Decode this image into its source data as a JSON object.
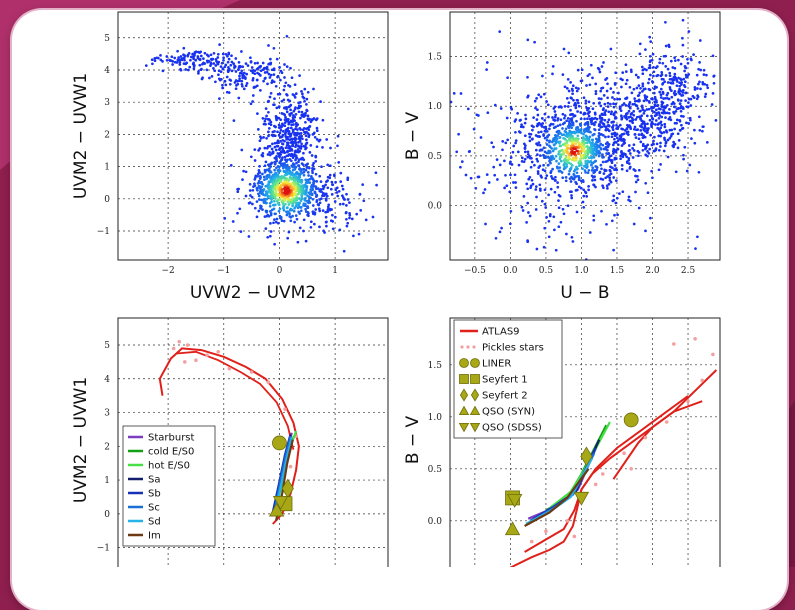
{
  "colors": {
    "frame_background": "#8f1f4e",
    "point_blue": "#1d33f0",
    "density_center": "#e01e10",
    "model_track_red": "#e0201a",
    "agn_marker_olive": "#a8a816"
  },
  "chart_data": [
    {
      "type": "scatter",
      "id": "top-left",
      "xlabel": "UVW2 − UVM2",
      "ylabel": "UVM2 − UVW1",
      "xlim": [
        -2.9,
        1.95
      ],
      "ylim": [
        -1.9,
        5.8
      ],
      "xticks": [
        -2,
        -1,
        0,
        1
      ],
      "xticklabels": [
        "−2",
        "−1",
        "0",
        "1"
      ],
      "yticks": [
        -1,
        0,
        1,
        2,
        3,
        4,
        5
      ],
      "yticklabels": [
        "−1",
        "0",
        "1",
        "2",
        "3",
        "4",
        "5"
      ],
      "grid": true,
      "density": {
        "points": 1600,
        "core": [
          0.12,
          0.25
        ],
        "components": [
          {
            "center": [
              0.08,
              0.3
            ],
            "sigma": [
              0.28,
              0.35
            ],
            "weight": 0.3
          },
          {
            "center": [
              0.18,
              2.0
            ],
            "sigma": [
              0.22,
              0.8
            ],
            "weight": 0.22
          },
          {
            "center": [
              0.25,
              1.3
            ],
            "sigma": [
              0.32,
              0.9
            ],
            "weight": 0.15
          },
          {
            "center": [
              -0.6,
              3.9
            ],
            "sigma": [
              0.35,
              0.28
            ],
            "weight": 0.1
          },
          {
            "center": [
              -1.5,
              4.3
            ],
            "sigma": [
              0.35,
              0.15
            ],
            "weight": 0.08
          },
          {
            "center": [
              0.4,
              0.0
            ],
            "sigma": [
              0.55,
              0.55
            ],
            "weight": 0.15
          }
        ]
      }
    },
    {
      "type": "scatter",
      "id": "top-right",
      "xlabel": "U − B",
      "ylabel": "B − V",
      "xlim": [
        -0.85,
        2.95
      ],
      "ylim": [
        -0.55,
        1.95
      ],
      "xticks": [
        -0.5,
        0.0,
        0.5,
        1.0,
        1.5,
        2.0,
        2.5
      ],
      "xticklabels": [
        "−0.5",
        "0.0",
        "0.5",
        "1.0",
        "1.5",
        "2.0",
        "2.5"
      ],
      "yticks": [
        0.0,
        0.5,
        1.0,
        1.5
      ],
      "yticklabels": [
        "0.0",
        "0.5",
        "1.0",
        "1.5"
      ],
      "grid": true,
      "density": {
        "points": 1700,
        "core": [
          0.9,
          0.55
        ],
        "components": [
          {
            "center": [
              0.95,
              0.58
            ],
            "sigma": [
              0.35,
              0.18
            ],
            "weight": 0.35
          },
          {
            "center": [
              1.6,
              0.85
            ],
            "sigma": [
              0.45,
              0.22
            ],
            "weight": 0.25
          },
          {
            "center": [
              2.3,
              1.2
            ],
            "sigma": [
              0.3,
              0.25
            ],
            "weight": 0.15
          },
          {
            "center": [
              0.7,
              0.5
            ],
            "sigma": [
              0.7,
              0.45
            ],
            "weight": 0.25
          }
        ]
      }
    },
    {
      "type": "line",
      "id": "bottom-left",
      "ylabel": "UVM2 − UVW1",
      "xlim": [
        -2.9,
        1.95
      ],
      "ylim": [
        -1.9,
        5.8
      ],
      "yticks": [
        -1,
        0,
        1,
        2,
        3,
        4,
        5
      ],
      "yticklabels": [
        "−1",
        "0",
        "1",
        "2",
        "3",
        "4",
        "5"
      ],
      "xticks": [
        -2,
        -1,
        0,
        1
      ],
      "grid": true,
      "stellar_track": [
        [
          -2.1,
          3.5
        ],
        [
          -2.15,
          4.0
        ],
        [
          -1.95,
          4.6
        ],
        [
          -1.75,
          4.9
        ],
        [
          -1.4,
          4.85
        ],
        [
          -1.0,
          4.65
        ],
        [
          -0.6,
          4.35
        ],
        [
          -0.25,
          4.0
        ],
        [
          0.05,
          3.4
        ],
        [
          0.25,
          2.7
        ],
        [
          0.35,
          2.0
        ],
        [
          0.3,
          1.3
        ],
        [
          0.2,
          0.6
        ],
        [
          0.05,
          0.0
        ],
        [
          -0.12,
          -0.3
        ]
      ],
      "stellar_track_2": [
        [
          -1.85,
          4.75
        ],
        [
          -1.5,
          4.8
        ],
        [
          -1.1,
          4.55
        ],
        [
          -0.7,
          4.2
        ],
        [
          -0.35,
          3.85
        ],
        [
          -0.05,
          3.3
        ],
        [
          0.15,
          2.6
        ],
        [
          0.25,
          1.9
        ]
      ],
      "pickles_stars": [
        [
          -1.8,
          5.1
        ],
        [
          -1.65,
          5.0
        ],
        [
          -1.9,
          4.9
        ],
        [
          -1.7,
          4.5
        ],
        [
          -1.3,
          4.7
        ],
        [
          -0.9,
          4.3
        ],
        [
          -0.5,
          4.2
        ],
        [
          -0.2,
          3.9
        ],
        [
          0.1,
          3.1
        ],
        [
          0.3,
          2.3
        ],
        [
          0.2,
          1.4
        ],
        [
          0.1,
          0.7
        ],
        [
          -0.05,
          0.1
        ],
        [
          -1.5,
          4.55
        ],
        [
          -1.1,
          4.8
        ]
      ],
      "series": [
        {
          "name": "Starburst",
          "color": "#7d3cc0",
          "points": [
            [
              -0.08,
              0.2
            ],
            [
              0.05,
              1.1
            ],
            [
              0.15,
              1.9
            ],
            [
              0.22,
              2.4
            ]
          ]
        },
        {
          "name": "cold E/S0",
          "color": "#14a014",
          "points": [
            [
              -0.04,
              0.3
            ],
            [
              0.08,
              1.2
            ],
            [
              0.18,
              1.95
            ],
            [
              0.26,
              2.3
            ]
          ]
        },
        {
          "name": "hot E/S0",
          "color": "#46e046",
          "points": [
            [
              -0.02,
              0.4
            ],
            [
              0.1,
              1.3
            ],
            [
              0.2,
              2.0
            ],
            [
              0.3,
              2.45
            ]
          ]
        },
        {
          "name": "Sa",
          "color": "#141c6c",
          "points": [
            [
              -0.1,
              0.1
            ],
            [
              0.02,
              1.0
            ],
            [
              0.12,
              1.8
            ],
            [
              0.2,
              2.35
            ]
          ]
        },
        {
          "name": "Sb",
          "color": "#1830b8",
          "points": [
            [
              -0.12,
              0.05
            ],
            [
              0.0,
              0.95
            ],
            [
              0.1,
              1.75
            ],
            [
              0.19,
              2.3
            ]
          ]
        },
        {
          "name": "Sc",
          "color": "#1a6fd6",
          "points": [
            [
              -0.1,
              0.0
            ],
            [
              0.01,
              0.9
            ],
            [
              0.11,
              1.7
            ],
            [
              0.2,
              2.3
            ]
          ]
        },
        {
          "name": "Sd",
          "color": "#27b3e8",
          "points": [
            [
              -0.08,
              0.05
            ],
            [
              0.03,
              0.85
            ],
            [
              0.13,
              1.65
            ],
            [
              0.22,
              2.25
            ]
          ]
        },
        {
          "name": "Im",
          "color": "#6b3a14",
          "points": [
            [
              -0.06,
              -0.2
            ],
            [
              0.05,
              0.6
            ],
            [
              0.14,
              1.5
            ],
            [
              0.24,
              2.2
            ]
          ]
        }
      ],
      "markers": [
        {
          "shape": "circle",
          "x": 0.0,
          "y": 2.1
        },
        {
          "shape": "diamond",
          "x": 0.15,
          "y": 0.75
        },
        {
          "shape": "square",
          "x": 0.1,
          "y": 0.3
        },
        {
          "shape": "triangle-up",
          "x": -0.05,
          "y": 0.1
        },
        {
          "shape": "triangle-down",
          "x": 0.02,
          "y": 0.35
        }
      ]
    },
    {
      "type": "line",
      "id": "bottom-right",
      "ylabel": "B − V",
      "xlim": [
        -0.85,
        2.95
      ],
      "ylim": [
        -0.55,
        1.95
      ],
      "yticks": [
        0.0,
        0.5,
        1.0,
        1.5
      ],
      "yticklabels": [
        "0.0",
        "0.5",
        "1.0",
        "1.5"
      ],
      "xticks": [
        -0.5,
        0.0,
        0.5,
        1.0,
        1.5,
        2.0,
        2.5
      ],
      "grid": true,
      "atlas9_tracks": [
        [
          [
            0.0,
            -0.45
          ],
          [
            0.3,
            -0.35
          ],
          [
            0.55,
            -0.28
          ],
          [
            0.75,
            -0.2
          ],
          [
            0.88,
            -0.05
          ],
          [
            0.95,
            0.15
          ],
          [
            1.0,
            0.3
          ],
          [
            1.15,
            0.45
          ],
          [
            1.4,
            0.6
          ],
          [
            1.7,
            0.75
          ],
          [
            2.0,
            0.9
          ],
          [
            2.3,
            1.05
          ],
          [
            2.6,
            1.25
          ],
          [
            2.9,
            1.45
          ]
        ],
        [
          [
            0.2,
            -0.3
          ],
          [
            0.5,
            -0.18
          ],
          [
            0.75,
            -0.08
          ],
          [
            0.9,
            0.1
          ],
          [
            1.0,
            0.3
          ],
          [
            1.2,
            0.5
          ],
          [
            1.5,
            0.7
          ],
          [
            1.8,
            0.85
          ],
          [
            2.1,
            1.0
          ],
          [
            2.5,
            1.2
          ]
        ],
        [
          [
            1.45,
            0.4
          ],
          [
            1.6,
            0.55
          ],
          [
            1.8,
            0.75
          ],
          [
            2.0,
            0.9
          ],
          [
            2.3,
            1.05
          ],
          [
            2.7,
            1.15
          ]
        ]
      ],
      "pickles_stars": [
        [
          0.3,
          -0.2
        ],
        [
          0.5,
          -0.1
        ],
        [
          0.8,
          0.0
        ],
        [
          1.0,
          0.2
        ],
        [
          1.3,
          0.45
        ],
        [
          1.6,
          0.65
        ],
        [
          1.9,
          0.8
        ],
        [
          2.2,
          0.95
        ],
        [
          2.5,
          1.15
        ],
        [
          2.7,
          1.35
        ],
        [
          2.85,
          1.6
        ],
        [
          2.6,
          1.75
        ],
        [
          2.3,
          1.7
        ],
        [
          0.9,
          -0.15
        ],
        [
          1.2,
          0.35
        ],
        [
          1.7,
          0.5
        ]
      ],
      "series": [
        {
          "name": "Starburst",
          "color": "#7d3cc0",
          "points": [
            [
              0.25,
              0.02
            ],
            [
              0.6,
              0.12
            ],
            [
              0.95,
              0.3
            ],
            [
              1.3,
              0.85
            ]
          ]
        },
        {
          "name": "cold E/S0",
          "color": "#14a014",
          "points": [
            [
              0.5,
              0.1
            ],
            [
              0.8,
              0.22
            ],
            [
              1.0,
              0.45
            ],
            [
              1.35,
              0.92
            ]
          ]
        },
        {
          "name": "hot E/S0",
          "color": "#46e046",
          "points": [
            [
              0.55,
              0.12
            ],
            [
              0.85,
              0.28
            ],
            [
              1.05,
              0.5
            ],
            [
              1.4,
              0.95
            ]
          ]
        },
        {
          "name": "Sa",
          "color": "#141c6c",
          "points": [
            [
              0.3,
              0.0
            ],
            [
              0.65,
              0.15
            ],
            [
              0.92,
              0.28
            ],
            [
              1.25,
              0.78
            ]
          ]
        },
        {
          "name": "Sb",
          "color": "#1830b8",
          "points": [
            [
              0.28,
              0.0
            ],
            [
              0.62,
              0.14
            ],
            [
              0.9,
              0.27
            ],
            [
              1.2,
              0.7
            ]
          ]
        },
        {
          "name": "Sc",
          "color": "#1a6fd6",
          "points": [
            [
              0.25,
              -0.02
            ],
            [
              0.6,
              0.12
            ],
            [
              0.88,
              0.25
            ],
            [
              1.18,
              0.65
            ]
          ]
        },
        {
          "name": "Sd",
          "color": "#27b3e8",
          "points": [
            [
              0.22,
              -0.03
            ],
            [
              0.58,
              0.1
            ],
            [
              0.85,
              0.23
            ],
            [
              1.15,
              0.6
            ]
          ]
        },
        {
          "name": "Im",
          "color": "#6b3a14",
          "points": [
            [
              0.2,
              -0.05
            ],
            [
              0.55,
              0.08
            ],
            [
              0.8,
              0.22
            ],
            [
              1.1,
              0.5
            ]
          ]
        }
      ],
      "markers": [
        {
          "shape": "circle",
          "x": 1.7,
          "y": 0.97
        },
        {
          "shape": "diamond",
          "x": 1.07,
          "y": 0.62
        },
        {
          "shape": "square",
          "x": 0.03,
          "y": 0.22
        },
        {
          "shape": "triangle-up",
          "x": 0.03,
          "y": -0.08
        },
        {
          "shape": "triangle-down",
          "x": 0.06,
          "y": 0.2
        },
        {
          "shape": "triangle-down",
          "x": 1.0,
          "y": 0.22
        }
      ]
    }
  ],
  "legend_bottom_left": {
    "entries": [
      {
        "label": "Starburst",
        "color": "#7d3cc0"
      },
      {
        "label": "cold E/S0",
        "color": "#14a014"
      },
      {
        "label": "hot E/S0",
        "color": "#46e046"
      },
      {
        "label": "Sa",
        "color": "#141c6c"
      },
      {
        "label": "Sb",
        "color": "#1830b8"
      },
      {
        "label": "Sc",
        "color": "#1a6fd6"
      },
      {
        "label": "Sd",
        "color": "#27b3e8"
      },
      {
        "label": "Im",
        "color": "#6b3a14"
      }
    ]
  },
  "legend_bottom_right": {
    "entries": [
      {
        "label": "ATLAS9",
        "kind": "line",
        "color": "#e0201a"
      },
      {
        "label": "Pickles stars",
        "kind": "dots",
        "color": "#f08888"
      },
      {
        "label": "LINER",
        "kind": "circle",
        "color": "#a8a816"
      },
      {
        "label": "Seyfert 1",
        "kind": "square",
        "color": "#a8a816"
      },
      {
        "label": "Seyfert 2",
        "kind": "diamond",
        "color": "#a8a816"
      },
      {
        "label": "QSO (SYN)",
        "kind": "triangle-up",
        "color": "#a8a816"
      },
      {
        "label": "QSO (SDSS)",
        "kind": "triangle-down",
        "color": "#a8a816"
      }
    ]
  }
}
